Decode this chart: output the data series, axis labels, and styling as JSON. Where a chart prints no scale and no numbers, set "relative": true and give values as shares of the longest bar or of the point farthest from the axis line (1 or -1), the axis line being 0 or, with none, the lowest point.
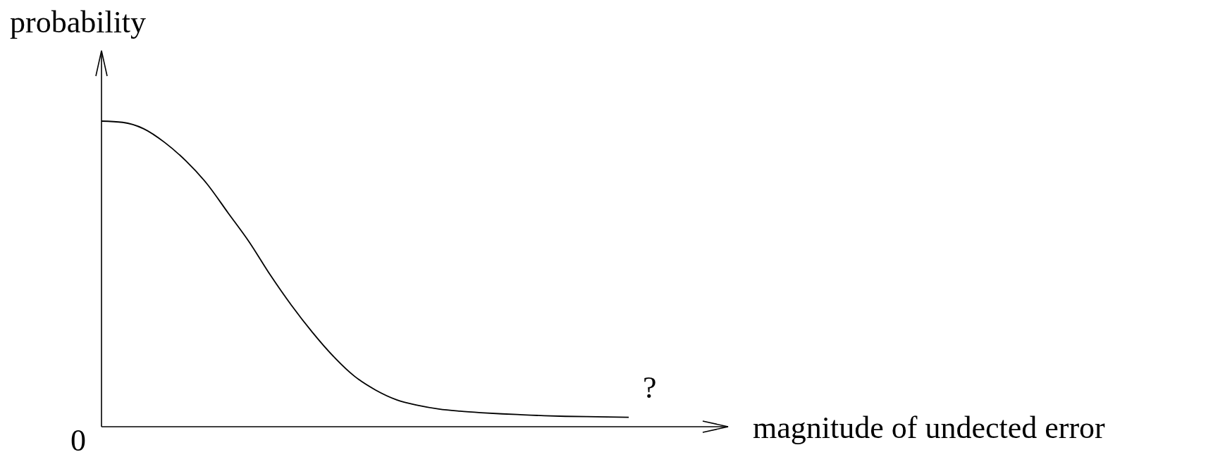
{
  "chart_data": {
    "type": "line",
    "relative": true,
    "ylabel": "probability",
    "xlabel": "magnitude of undected error",
    "annotations": [
      "0",
      "?"
    ],
    "categories": [
      null,
      null,
      null,
      null,
      null,
      null,
      null,
      null,
      null,
      null,
      null,
      null,
      null,
      null,
      null,
      null,
      null,
      null,
      null,
      null,
      null,
      null,
      null,
      null,
      null,
      null
    ],
    "series": [
      {
        "color": "#000000",
        "values": [
          1.0,
          0.996,
          0.975,
          0.93,
          0.87,
          0.795,
          0.7,
          0.605,
          0.497,
          0.398,
          0.309,
          0.23,
          0.165,
          0.12,
          0.088,
          0.07,
          0.058,
          0.051,
          0.046,
          0.042,
          0.039,
          0.036,
          0.034,
          0.033,
          0.032,
          0.031
        ]
      }
    ]
  }
}
